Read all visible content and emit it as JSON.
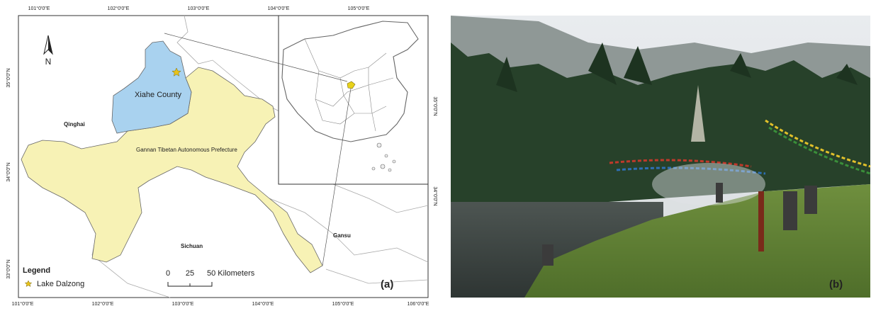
{
  "map": {
    "top_ticks": [
      "101°0'0\"E",
      "102°0'0\"E",
      "103°0'0\"E",
      "104°0'0\"E",
      "105°0'0\"E"
    ],
    "bottom_ticks": [
      "101°0'0\"E",
      "102°0'0\"E",
      "103°0'0\"E",
      "104°0'0\"E",
      "105°0'0\"E",
      "106°0'0\"E"
    ],
    "left_ticks": [
      "35°0'0\"N",
      "34°0'0\"N",
      "33°0'0\"N"
    ],
    "right_ticks": [
      "35°0'0\"N",
      "34°0'0\"N"
    ],
    "north": "N",
    "labels": {
      "xiahe": "Xiahe County",
      "qinghai": "Qinghai",
      "gannan": "Gannan Tibetan Autonomous Prefecture",
      "sichuan": "Sichuan",
      "gansu": "Gansu"
    },
    "legend": {
      "title": "Legend",
      "item": "Lake Dalzong"
    },
    "scale_bar": [
      "0",
      "25",
      "50 Kilometers"
    ],
    "panel_label": "(a)"
  },
  "photo": {
    "panel_label": "(b)"
  }
}
